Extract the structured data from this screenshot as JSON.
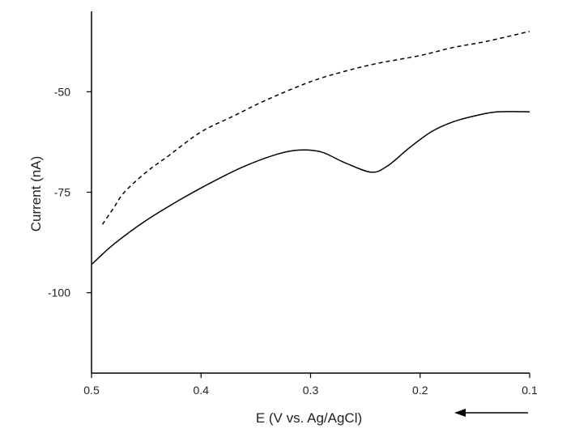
{
  "chart_data": {
    "type": "line",
    "title": "",
    "xlabel": "E (V vs. Ag/AgCl)",
    "ylabel": "Current (nA)",
    "xlim": [
      0.5,
      0.1
    ],
    "ylim": [
      -120,
      -30
    ],
    "x_ticks": [
      {
        "value": 0.5,
        "label": "0.5"
      },
      {
        "value": 0.4,
        "label": "0.4"
      },
      {
        "value": 0.3,
        "label": "0.3"
      },
      {
        "value": 0.2,
        "label": "0.2"
      },
      {
        "value": 0.1,
        "label": "0.1"
      }
    ],
    "y_ticks": [
      {
        "value": -50,
        "label": "-50"
      },
      {
        "value": -75,
        "label": "-75"
      },
      {
        "value": -100,
        "label": "-100"
      }
    ],
    "scan_direction": "decreasing potential",
    "grid": false,
    "legend": "none",
    "series": [
      {
        "style": "dashed",
        "color": "#000000",
        "x": [
          0.49,
          0.48,
          0.47,
          0.45,
          0.43,
          0.4,
          0.37,
          0.34,
          0.3,
          0.27,
          0.24,
          0.2,
          0.17,
          0.14,
          0.1
        ],
        "y": [
          -83,
          -79,
          -75,
          -70,
          -66,
          -60,
          -56,
          -52,
          -47.5,
          -45,
          -43,
          -41,
          -39,
          -37.5,
          -35
        ]
      },
      {
        "style": "solid",
        "color": "#000000",
        "x": [
          0.5,
          0.48,
          0.45,
          0.42,
          0.39,
          0.36,
          0.33,
          0.31,
          0.29,
          0.27,
          0.245,
          0.23,
          0.21,
          0.19,
          0.17,
          0.15,
          0.13,
          0.1
        ],
        "y": [
          -93,
          -88,
          -82,
          -77,
          -72.5,
          -68.5,
          -65.5,
          -64.5,
          -65,
          -67.5,
          -70,
          -68.5,
          -64,
          -60,
          -57.5,
          -56,
          -55,
          -55
        ]
      }
    ]
  }
}
